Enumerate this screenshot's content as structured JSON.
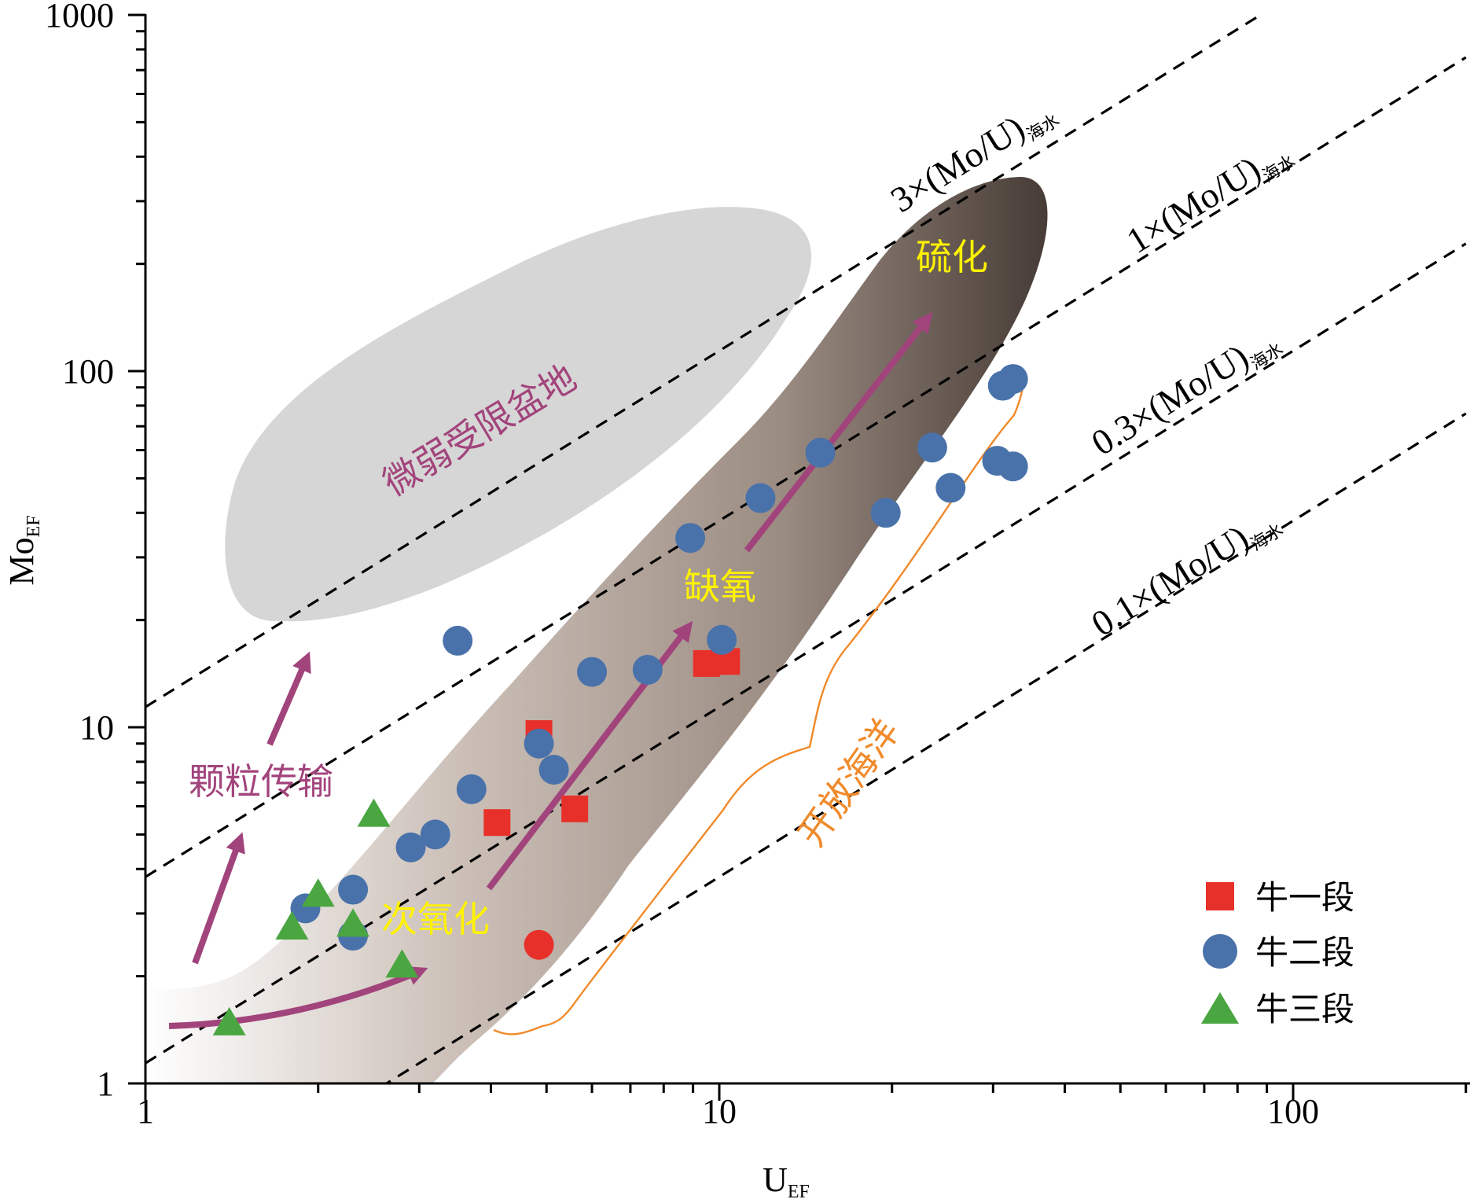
{
  "chart_data": {
    "type": "scatter",
    "xlabel": "U",
    "xlabel_sub": "EF",
    "ylabel": "Mo",
    "ylabel_sub": "EF",
    "x_scale": "log",
    "y_scale": "log",
    "xlim": [
      1,
      200
    ],
    "ylim": [
      1,
      1000
    ],
    "x_ticks": [
      1,
      10,
      100
    ],
    "x_tick_labels": [
      "1",
      "10",
      "100"
    ],
    "y_ticks": [
      1,
      10,
      100,
      1000
    ],
    "y_tick_labels": [
      "1",
      "10",
      "100",
      "1000"
    ],
    "grid": false,
    "legend_position": "bottom-right",
    "series": [
      {
        "name": "牛一段",
        "marker": "square",
        "color": "#e8302a",
        "points": [
          [
            4.1,
            5.4
          ],
          [
            4.85,
            9.6
          ],
          [
            5.6,
            5.9
          ],
          [
            9.5,
            15.1
          ],
          [
            10.3,
            15.3
          ]
        ]
      },
      {
        "name": "牛二段",
        "marker": "circle",
        "color": "#4a72aa",
        "points": [
          [
            1.9,
            3.1
          ],
          [
            2.3,
            3.5
          ],
          [
            2.3,
            2.6
          ],
          [
            2.9,
            4.6
          ],
          [
            3.2,
            5.0
          ],
          [
            3.5,
            17.5
          ],
          [
            3.7,
            6.7
          ],
          [
            4.85,
            9.0
          ],
          [
            5.15,
            7.6
          ],
          [
            6.0,
            14.3
          ],
          [
            7.5,
            14.5
          ],
          [
            8.9,
            34.0
          ],
          [
            10.1,
            17.6
          ],
          [
            11.8,
            44.0
          ],
          [
            15.0,
            59.0
          ],
          [
            19.5,
            40.0
          ],
          [
            23.5,
            61.0
          ],
          [
            25.3,
            47.0
          ],
          [
            30.5,
            56.0
          ],
          [
            31.2,
            91.0
          ],
          [
            32.5,
            95.0
          ],
          [
            32.5,
            54.0
          ]
        ]
      },
      {
        "name": "牛三段",
        "marker": "triangle",
        "color": "#4aa640",
        "points": [
          [
            1.4,
            1.48
          ],
          [
            1.8,
            2.75
          ],
          [
            2.0,
            3.4
          ],
          [
            2.3,
            2.8
          ],
          [
            2.5,
            5.7
          ],
          [
            2.8,
            2.15
          ]
        ]
      }
    ],
    "outlier_points": [
      {
        "x": 4.85,
        "y": 2.45,
        "color": "#e8302a",
        "marker": "circle"
      }
    ],
    "reference_lines": [
      {
        "label": "3×(Mo/U)",
        "label_sub": "海水",
        "factor": 3
      },
      {
        "label": "1×(Mo/U)",
        "label_sub": "海水",
        "factor": 1
      },
      {
        "label": "0.3×(Mo/U)",
        "label_sub": "海水",
        "factor": 0.3
      },
      {
        "label": "0.1×(Mo/U)",
        "label_sub": "海水",
        "factor": 0.1
      }
    ],
    "regions": [
      {
        "label": "微弱受限盆地",
        "fill": "#d6d6d6",
        "label_color": "#a2447c"
      },
      {
        "label": "硫化",
        "fill": "brown-gradient",
        "label_color": "#fff200"
      },
      {
        "label": "开放海洋",
        "color": "#f08a2a"
      }
    ],
    "annotations": [
      {
        "text": "颗粒传输",
        "color": "#a2447c"
      },
      {
        "text": "次氧化",
        "color": "#fff200"
      },
      {
        "text": "缺氧",
        "color": "#fff200"
      },
      {
        "text": "硫化",
        "color": "#fff200"
      }
    ],
    "colors": {
      "arrow": "#a2447c",
      "axis": "#000000",
      "shade_light": "#ffffff",
      "shade_dark": "#4a3f38"
    }
  }
}
